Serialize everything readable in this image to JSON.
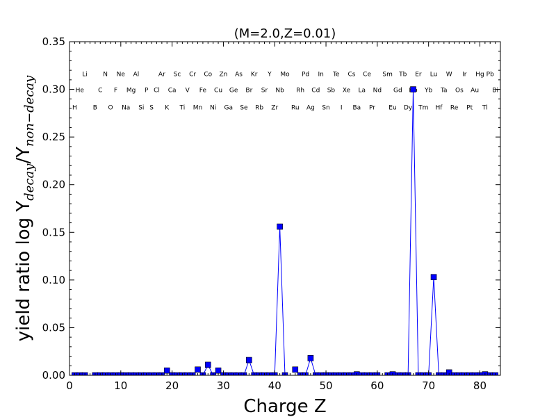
{
  "chart_data": {
    "type": "line",
    "title": "(M=2.0,Z=0.01)",
    "xlabel": "Charge Z",
    "ylabel": {
      "prefix": "yield ratio log Y",
      "sub1": "decay",
      "slash": "/Y",
      "sub2": "non−decay"
    },
    "xlim": [
      0,
      84
    ],
    "ylim": [
      0,
      0.35
    ],
    "xticks": [
      0,
      10,
      20,
      30,
      40,
      50,
      60,
      70,
      80
    ],
    "yticks": [
      "0.00",
      "0.05",
      "0.10",
      "0.15",
      "0.20",
      "0.25",
      "0.30",
      "0.35"
    ],
    "series": [
      {
        "name": "",
        "color": "#0000ff",
        "x": [
          1,
          2,
          3,
          5,
          6,
          7,
          8,
          9,
          10,
          11,
          12,
          13,
          14,
          15,
          16,
          17,
          18,
          19,
          20,
          21,
          22,
          23,
          24,
          25,
          26,
          27,
          28,
          29,
          30,
          31,
          32,
          33,
          34,
          35,
          36,
          37,
          38,
          39,
          40,
          41,
          42,
          44,
          45,
          46,
          47,
          48,
          49,
          50,
          51,
          52,
          53,
          54,
          55,
          56,
          57,
          58,
          59,
          60,
          62,
          63,
          64,
          65,
          66,
          67,
          68,
          69,
          70,
          71,
          72,
          73,
          74,
          75,
          76,
          77,
          78,
          79,
          80,
          81,
          82,
          83
        ],
        "y": [
          0,
          0,
          0,
          0,
          0,
          0,
          0,
          0,
          0,
          0,
          0,
          0,
          0,
          0,
          0,
          0,
          0,
          0.005,
          0,
          0,
          0,
          0,
          0,
          0.006,
          0,
          0.011,
          0,
          0.005,
          0,
          0,
          0,
          0,
          0,
          0.016,
          0,
          0,
          0,
          0,
          0,
          0.156,
          0,
          0.006,
          0,
          0,
          0.018,
          0,
          0,
          0,
          0,
          0,
          0,
          0,
          0,
          0.001,
          0,
          0,
          0,
          0,
          0,
          0.001,
          0,
          0,
          0,
          0.3,
          0,
          0,
          0,
          0.103,
          0,
          0,
          0.003,
          0,
          0,
          0,
          0,
          0,
          0,
          0.001,
          0,
          0
        ]
      }
    ],
    "element_labels": [
      {
        "z": 1,
        "row": 3,
        "symbol": "H"
      },
      {
        "z": 2,
        "row": 2,
        "symbol": "He"
      },
      {
        "z": 3,
        "row": 1,
        "symbol": "Li"
      },
      {
        "z": 5,
        "row": 3,
        "symbol": "B"
      },
      {
        "z": 6,
        "row": 2,
        "symbol": "C"
      },
      {
        "z": 7,
        "row": 1,
        "symbol": "N"
      },
      {
        "z": 8,
        "row": 3,
        "symbol": "O"
      },
      {
        "z": 9,
        "row": 2,
        "symbol": "F"
      },
      {
        "z": 10,
        "row": 1,
        "symbol": "Ne"
      },
      {
        "z": 11,
        "row": 3,
        "symbol": "Na"
      },
      {
        "z": 12,
        "row": 2,
        "symbol": "Mg"
      },
      {
        "z": 13,
        "row": 1,
        "symbol": "Al"
      },
      {
        "z": 14,
        "row": 3,
        "symbol": "Si"
      },
      {
        "z": 15,
        "row": 2,
        "symbol": "P"
      },
      {
        "z": 16,
        "row": 3,
        "symbol": "S"
      },
      {
        "z": 17,
        "row": 2,
        "symbol": "Cl"
      },
      {
        "z": 18,
        "row": 1,
        "symbol": "Ar"
      },
      {
        "z": 19,
        "row": 3,
        "symbol": "K"
      },
      {
        "z": 20,
        "row": 2,
        "symbol": "Ca"
      },
      {
        "z": 21,
        "row": 1,
        "symbol": "Sc"
      },
      {
        "z": 22,
        "row": 3,
        "symbol": "Ti"
      },
      {
        "z": 23,
        "row": 2,
        "symbol": "V"
      },
      {
        "z": 24,
        "row": 1,
        "symbol": "Cr"
      },
      {
        "z": 25,
        "row": 3,
        "symbol": "Mn"
      },
      {
        "z": 26,
        "row": 2,
        "symbol": "Fe"
      },
      {
        "z": 27,
        "row": 1,
        "symbol": "Co"
      },
      {
        "z": 28,
        "row": 3,
        "symbol": "Ni"
      },
      {
        "z": 29,
        "row": 2,
        "symbol": "Cu"
      },
      {
        "z": 30,
        "row": 1,
        "symbol": "Zn"
      },
      {
        "z": 31,
        "row": 3,
        "symbol": "Ga"
      },
      {
        "z": 32,
        "row": 2,
        "symbol": "Ge"
      },
      {
        "z": 33,
        "row": 1,
        "symbol": "As"
      },
      {
        "z": 34,
        "row": 3,
        "symbol": "Se"
      },
      {
        "z": 35,
        "row": 2,
        "symbol": "Br"
      },
      {
        "z": 36,
        "row": 1,
        "symbol": "Kr"
      },
      {
        "z": 37,
        "row": 3,
        "symbol": "Rb"
      },
      {
        "z": 38,
        "row": 2,
        "symbol": "Sr"
      },
      {
        "z": 39,
        "row": 1,
        "symbol": "Y"
      },
      {
        "z": 40,
        "row": 3,
        "symbol": "Zr"
      },
      {
        "z": 41,
        "row": 2,
        "symbol": "Nb"
      },
      {
        "z": 42,
        "row": 1,
        "symbol": "Mo"
      },
      {
        "z": 44,
        "row": 3,
        "symbol": "Ru"
      },
      {
        "z": 45,
        "row": 2,
        "symbol": "Rh"
      },
      {
        "z": 46,
        "row": 1,
        "symbol": "Pd"
      },
      {
        "z": 47,
        "row": 3,
        "symbol": "Ag"
      },
      {
        "z": 48,
        "row": 2,
        "symbol": "Cd"
      },
      {
        "z": 49,
        "row": 1,
        "symbol": "In"
      },
      {
        "z": 50,
        "row": 3,
        "symbol": "Sn"
      },
      {
        "z": 51,
        "row": 2,
        "symbol": "Sb"
      },
      {
        "z": 52,
        "row": 1,
        "symbol": "Te"
      },
      {
        "z": 53,
        "row": 3,
        "symbol": "I"
      },
      {
        "z": 54,
        "row": 2,
        "symbol": "Xe"
      },
      {
        "z": 55,
        "row": 1,
        "symbol": "Cs"
      },
      {
        "z": 56,
        "row": 3,
        "symbol": "Ba"
      },
      {
        "z": 57,
        "row": 2,
        "symbol": "La"
      },
      {
        "z": 58,
        "row": 1,
        "symbol": "Ce"
      },
      {
        "z": 59,
        "row": 3,
        "symbol": "Pr"
      },
      {
        "z": 60,
        "row": 2,
        "symbol": "Nd"
      },
      {
        "z": 62,
        "row": 1,
        "symbol": "Sm"
      },
      {
        "z": 63,
        "row": 3,
        "symbol": "Eu"
      },
      {
        "z": 64,
        "row": 2,
        "symbol": "Gd"
      },
      {
        "z": 65,
        "row": 1,
        "symbol": "Tb"
      },
      {
        "z": 66,
        "row": 3,
        "symbol": "Dy"
      },
      {
        "z": 67,
        "row": 2,
        "symbol": "Ho"
      },
      {
        "z": 68,
        "row": 1,
        "symbol": "Er"
      },
      {
        "z": 69,
        "row": 3,
        "symbol": "Tm"
      },
      {
        "z": 70,
        "row": 2,
        "symbol": "Yb"
      },
      {
        "z": 71,
        "row": 1,
        "symbol": "Lu"
      },
      {
        "z": 72,
        "row": 3,
        "symbol": "Hf"
      },
      {
        "z": 73,
        "row": 2,
        "symbol": "Ta"
      },
      {
        "z": 74,
        "row": 1,
        "symbol": "W"
      },
      {
        "z": 75,
        "row": 3,
        "symbol": "Re"
      },
      {
        "z": 76,
        "row": 2,
        "symbol": "Os"
      },
      {
        "z": 77,
        "row": 1,
        "symbol": "Ir"
      },
      {
        "z": 78,
        "row": 3,
        "symbol": "Pt"
      },
      {
        "z": 79,
        "row": 2,
        "symbol": "Au"
      },
      {
        "z": 80,
        "row": 1,
        "symbol": "Hg"
      },
      {
        "z": 81,
        "row": 3,
        "symbol": "Tl"
      },
      {
        "z": 82,
        "row": 1,
        "symbol": "Pb"
      },
      {
        "z": 83,
        "row": 2,
        "symbol": "Bi"
      }
    ],
    "grid": false,
    "legend": "none"
  }
}
